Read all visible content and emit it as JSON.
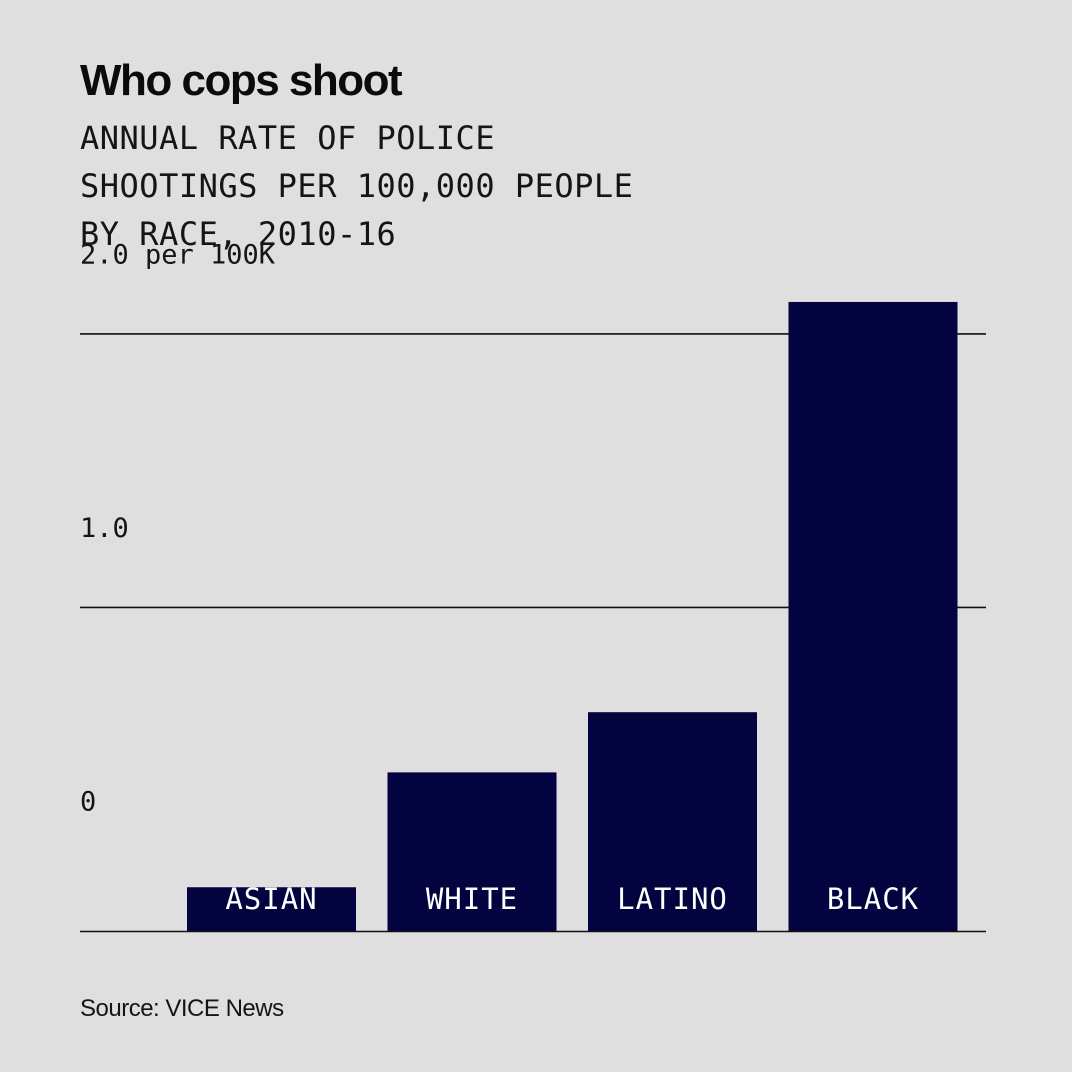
{
  "title": "Who cops shoot",
  "subtitle_lines": [
    "ANNUAL RATE OF POLICE",
    "SHOOTINGS PER 100,000 PEOPLE",
    "BY RACE, 2010-16"
  ],
  "source": "Source: VICE News",
  "colors": {
    "background": "#dfdfdf",
    "bar": "#03033f",
    "gridline": "#111111",
    "text": "#151515"
  },
  "chart_data": {
    "type": "bar",
    "title": "Who cops shoot",
    "subtitle": "ANNUAL RATE OF POLICE SHOOTINGS PER 100,000 PEOPLE BY RACE, 2010-16",
    "categories": [
      "ASIAN",
      "WHITE",
      "LATINO",
      "BLACK"
    ],
    "values": [
      0.16,
      0.58,
      0.8,
      2.3
    ],
    "ylim": [
      0,
      2.0
    ],
    "yticks": [
      {
        "value": 2.0,
        "label": "2.0 per 100K"
      },
      {
        "value": 1.0,
        "label": "1.0"
      },
      {
        "value": 0,
        "label": "0"
      }
    ],
    "grid": true,
    "xlabel": "",
    "ylabel": ""
  }
}
